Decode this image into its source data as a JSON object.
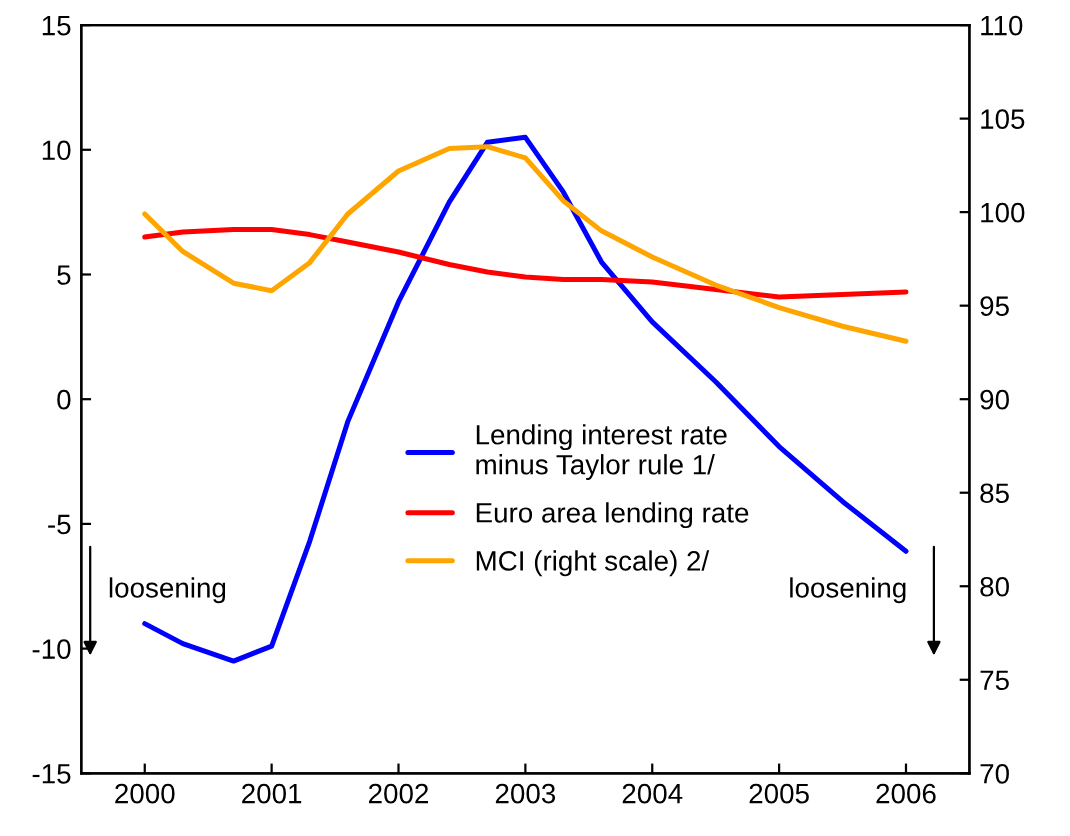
{
  "chart_data": {
    "type": "line",
    "x": [
      2000,
      2000.3,
      2000.7,
      2001,
      2001.3,
      2001.6,
      2002,
      2002.4,
      2002.7,
      2003,
      2003.3,
      2003.6,
      2004,
      2004.5,
      2005,
      2005.5,
      2006
    ],
    "xlim": [
      1999.5,
      2006.5
    ],
    "xticks": [
      2000,
      2001,
      2002,
      2003,
      2004,
      2005,
      2006
    ],
    "ylim": [
      -15,
      15
    ],
    "yticks": [
      -15,
      -10,
      -5,
      0,
      5,
      10,
      15
    ],
    "y2lim": [
      70,
      110
    ],
    "y2ticks": [
      70,
      75,
      80,
      85,
      90,
      95,
      100,
      105,
      110
    ],
    "series": [
      {
        "name": "Lending interest rate\nminus Taylor rule 1/",
        "color": "#0000ff",
        "values": [
          -9.0,
          -9.8,
          -10.5,
          -9.9,
          -5.7,
          -0.9,
          3.9,
          7.9,
          10.3,
          10.5,
          8.3,
          5.5,
          3.1,
          0.7,
          -1.9,
          -4.1,
          -6.1
        ]
      },
      {
        "name": "Euro area lending rate",
        "color": "#ff0000",
        "values": [
          6.5,
          6.7,
          6.8,
          6.8,
          6.6,
          6.3,
          5.9,
          5.4,
          5.1,
          4.9,
          4.8,
          4.8,
          4.7,
          4.4,
          4.1,
          4.2,
          4.3
        ]
      },
      {
        "name": "MCI (right scale) 2/",
        "color": "#ffa500",
        "axis": "y2",
        "values": [
          99.9,
          97.9,
          96.2,
          95.8,
          97.3,
          99.9,
          102.2,
          103.4,
          103.5,
          102.9,
          100.6,
          99.0,
          97.6,
          96.1,
          94.9,
          93.9,
          93.1
        ]
      }
    ],
    "legend": "center",
    "grid": false,
    "annotations": [
      "loosening",
      "loosening"
    ]
  }
}
